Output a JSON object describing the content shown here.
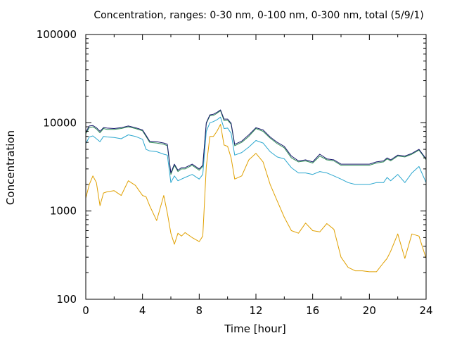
{
  "chart_data": {
    "type": "line",
    "title": "Concentration, ranges: 0-30 nm, 0-100 nm, 0-300 nm, total (5/9/1)",
    "xlabel": "Time [hour]",
    "ylabel": "Concentration",
    "xlim": [
      0,
      24
    ],
    "ylim": [
      100,
      100000
    ],
    "yscale": "log",
    "grid": false,
    "xticks": [
      0,
      4,
      8,
      12,
      16,
      20,
      24
    ],
    "yticks": [
      100,
      1000,
      10000,
      100000
    ],
    "xtick_labels": [
      "0",
      "4",
      "8",
      "12",
      "16",
      "20",
      "24"
    ],
    "ytick_labels": [
      "100",
      "1000",
      "10000",
      "100000"
    ],
    "x": [
      0,
      0.25,
      0.5,
      0.75,
      1,
      1.25,
      1.5,
      2,
      2.5,
      3,
      3.5,
      4,
      4.25,
      4.5,
      5,
      5.5,
      5.75,
      6,
      6.25,
      6.5,
      6.75,
      7,
      7.5,
      8,
      8.25,
      8.5,
      8.75,
      9,
      9.25,
      9.5,
      9.75,
      10,
      10.25,
      10.5,
      11,
      11.5,
      12,
      12.5,
      13,
      13.5,
      14,
      14.5,
      15,
      15.5,
      16,
      16.5,
      17,
      17.5,
      18,
      18.5,
      19,
      19.5,
      20,
      20.5,
      21,
      21.25,
      21.5,
      22,
      22.5,
      23,
      23.5,
      24
    ],
    "series": [
      {
        "color": "#e0a000",
        "values": [
          1400,
          2000,
          2500,
          2100,
          1150,
          1600,
          1650,
          1700,
          1500,
          2200,
          1950,
          1500,
          1450,
          1150,
          780,
          1500,
          950,
          560,
          420,
          560,
          520,
          570,
          500,
          450,
          520,
          3200,
          7000,
          7000,
          8000,
          9600,
          5600,
          5400,
          4000,
          2300,
          2500,
          3800,
          4500,
          3600,
          2000,
          1300,
          850,
          600,
          560,
          730,
          600,
          580,
          720,
          620,
          300,
          230,
          210,
          210,
          205,
          205,
          260,
          290,
          350,
          550,
          290,
          550,
          520,
          290
        ]
      },
      {
        "color": "#2ba7cf",
        "values": [
          5800,
          6900,
          7100,
          6600,
          6100,
          7000,
          6900,
          6800,
          6600,
          7300,
          7000,
          6500,
          5000,
          4800,
          4700,
          4400,
          4300,
          2100,
          2500,
          2200,
          2300,
          2400,
          2600,
          2300,
          2600,
          8000,
          10000,
          10300,
          10800,
          11600,
          8600,
          8700,
          7600,
          4300,
          4600,
          5300,
          6300,
          5900,
          4700,
          4100,
          3900,
          3100,
          2700,
          2700,
          2600,
          2800,
          2700,
          2500,
          2300,
          2100,
          2000,
          2000,
          2000,
          2100,
          2100,
          2400,
          2200,
          2600,
          2100,
          2700,
          3200,
          2100
        ]
      },
      {
        "color": "#2e8b57",
        "values": [
          7500,
          8800,
          9000,
          8500,
          7700,
          8600,
          8400,
          8400,
          8600,
          9000,
          8600,
          8100,
          7000,
          6000,
          5900,
          5700,
          5500,
          2600,
          3300,
          2800,
          3000,
          3000,
          3300,
          2900,
          3200,
          9800,
          12000,
          12100,
          12800,
          13700,
          10600,
          10700,
          9600,
          5500,
          6000,
          7000,
          8600,
          8000,
          6700,
          5800,
          5200,
          4000,
          3600,
          3700,
          3500,
          4200,
          3800,
          3700,
          3300,
          3300,
          3300,
          3300,
          3300,
          3500,
          3600,
          3900,
          3700,
          4200,
          4100,
          4400,
          4900,
          3800
        ]
      },
      {
        "color": "#1a1a6e",
        "values": [
          7800,
          9200,
          9300,
          8800,
          8000,
          8800,
          8700,
          8600,
          8800,
          9200,
          8800,
          8300,
          7200,
          6200,
          6100,
          5900,
          5700,
          2700,
          3400,
          2900,
          3100,
          3100,
          3400,
          3000,
          3300,
          10000,
          12300,
          12500,
          13100,
          14000,
          11000,
          11000,
          9900,
          5700,
          6200,
          7300,
          8800,
          8300,
          6900,
          6000,
          5400,
          4200,
          3700,
          3800,
          3600,
          4400,
          3900,
          3800,
          3400,
          3400,
          3400,
          3400,
          3400,
          3600,
          3700,
          4000,
          3800,
          4300,
          4200,
          4500,
          5000,
          3900
        ]
      }
    ]
  }
}
